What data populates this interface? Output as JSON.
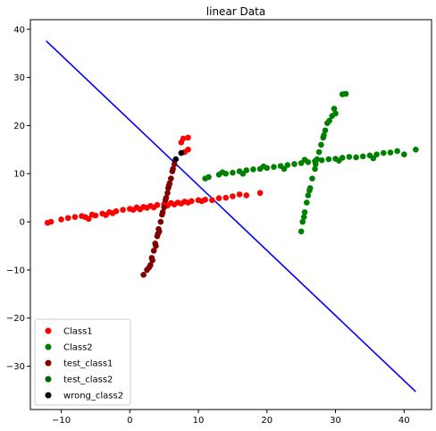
{
  "chart_data": {
    "type": "scatter",
    "title": "linear Data",
    "xlabel": "",
    "ylabel": "",
    "xlim": [
      -14.5,
      44
    ],
    "ylim": [
      -39,
      42
    ],
    "xticks": [
      -10,
      0,
      10,
      20,
      30,
      40
    ],
    "yticks": [
      -30,
      -20,
      -10,
      0,
      10,
      20,
      30,
      40
    ],
    "grid": false,
    "legend_position": "lower-left",
    "line": {
      "color": "#0000ff",
      "x": [
        -12.2,
        41.7
      ],
      "y": [
        37.6,
        -35.3
      ]
    },
    "series": [
      {
        "name": "Class1",
        "color": "#ff0000",
        "points": [
          [
            -12.0,
            -0.2
          ],
          [
            -11.5,
            0.0
          ],
          [
            -10.0,
            0.5
          ],
          [
            -9.0,
            0.8
          ],
          [
            -8.0,
            1.0
          ],
          [
            -7.0,
            1.2
          ],
          [
            -6.5,
            1.0
          ],
          [
            -5.5,
            1.5
          ],
          [
            -5.0,
            1.3
          ],
          [
            -4.0,
            1.7
          ],
          [
            -3.0,
            2.0
          ],
          [
            -2.5,
            1.8
          ],
          [
            -2.0,
            2.2
          ],
          [
            -1.0,
            2.5
          ],
          [
            0.0,
            2.7
          ],
          [
            0.5,
            2.5
          ],
          [
            1.0,
            3.0
          ],
          [
            2.0,
            3.1
          ],
          [
            2.5,
            2.9
          ],
          [
            3.0,
            3.3
          ],
          [
            4.0,
            3.5
          ],
          [
            5.0,
            3.7
          ],
          [
            5.5,
            3.4
          ],
          [
            6.0,
            3.9
          ],
          [
            7.0,
            4.0
          ],
          [
            7.5,
            3.8
          ],
          [
            8.0,
            4.2
          ],
          [
            8.5,
            4.0
          ],
          [
            9.0,
            4.3
          ],
          [
            10.0,
            4.5
          ],
          [
            10.5,
            4.3
          ],
          [
            11.0,
            4.6
          ],
          [
            12.0,
            4.5
          ],
          [
            13.0,
            4.9
          ],
          [
            14.0,
            5.0
          ],
          [
            15.0,
            5.3
          ],
          [
            16.0,
            5.7
          ],
          [
            17.0,
            5.5
          ],
          [
            19.0,
            6.0
          ],
          [
            -6.0,
            0.6
          ],
          [
            -3.5,
            1.4
          ],
          [
            1.5,
            2.6
          ],
          [
            3.5,
            3.0
          ],
          [
            6.5,
            3.6
          ],
          [
            8.0,
            14.5
          ],
          [
            8.5,
            15.0
          ],
          [
            7.5,
            16.5
          ],
          [
            8.5,
            17.5
          ],
          [
            7.8,
            17.3
          ]
        ]
      },
      {
        "name": "Class2",
        "color": "#008000",
        "points": [
          [
            11.0,
            9.0
          ],
          [
            11.5,
            9.3
          ],
          [
            13.0,
            9.8
          ],
          [
            14.0,
            10.0
          ],
          [
            15.0,
            10.2
          ],
          [
            16.0,
            10.5
          ],
          [
            17.0,
            10.7
          ],
          [
            18.0,
            10.9
          ],
          [
            19.0,
            11.0
          ],
          [
            20.0,
            11.2
          ],
          [
            21.0,
            11.4
          ],
          [
            22.0,
            11.6
          ],
          [
            23.0,
            11.8
          ],
          [
            24.0,
            12.0
          ],
          [
            25.0,
            12.2
          ],
          [
            26.0,
            12.4
          ],
          [
            27.0,
            12.6
          ],
          [
            28.0,
            12.8
          ],
          [
            29.0,
            13.0
          ],
          [
            30.0,
            13.1
          ],
          [
            31.0,
            13.3
          ],
          [
            32.0,
            13.5
          ],
          [
            33.0,
            13.4
          ],
          [
            34.0,
            13.6
          ],
          [
            35.0,
            13.8
          ],
          [
            36.0,
            14.0
          ],
          [
            37.0,
            14.3
          ],
          [
            38.0,
            14.4
          ],
          [
            39.0,
            14.7
          ],
          [
            40.0,
            14.0
          ],
          [
            41.7,
            15.0
          ],
          [
            13.5,
            10.3
          ],
          [
            16.5,
            10.0
          ],
          [
            19.5,
            11.5
          ],
          [
            22.5,
            11.0
          ],
          [
            25.5,
            12.9
          ],
          [
            30.5,
            12.7
          ],
          [
            35.5,
            13.2
          ],
          [
            25.0,
            -2.0
          ],
          [
            25.2,
            0.0
          ],
          [
            25.5,
            2.0
          ],
          [
            25.8,
            4.0
          ],
          [
            26.0,
            5.5
          ],
          [
            26.3,
            7.0
          ],
          [
            26.6,
            9.0
          ],
          [
            27.0,
            11.0
          ],
          [
            27.3,
            13.0
          ],
          [
            27.6,
            14.5
          ],
          [
            27.9,
            16.0
          ],
          [
            28.2,
            17.5
          ],
          [
            28.5,
            19.0
          ],
          [
            28.8,
            20.5
          ],
          [
            29.1,
            21.0
          ],
          [
            29.5,
            22.0
          ],
          [
            30.0,
            22.5
          ],
          [
            31.0,
            26.5
          ],
          [
            31.5,
            26.6
          ],
          [
            29.8,
            23.5
          ],
          [
            28.3,
            18.0
          ],
          [
            27.1,
            12.0
          ],
          [
            26.2,
            6.5
          ],
          [
            25.4,
            1.0
          ]
        ]
      },
      {
        "name": "test_class1",
        "color": "#800000",
        "points": [
          [
            2.0,
            -11.0
          ],
          [
            2.5,
            -10.0
          ],
          [
            3.0,
            -9.0
          ],
          [
            3.2,
            -7.5
          ],
          [
            3.5,
            -6.0
          ],
          [
            3.7,
            -4.5
          ],
          [
            4.0,
            -3.0
          ],
          [
            4.2,
            -1.5
          ],
          [
            4.5,
            0.0
          ],
          [
            4.7,
            1.5
          ],
          [
            5.0,
            3.0
          ],
          [
            5.2,
            4.5
          ],
          [
            5.5,
            6.0
          ],
          [
            5.7,
            7.5
          ],
          [
            6.0,
            9.0
          ],
          [
            6.2,
            10.5
          ],
          [
            6.5,
            12.0
          ],
          [
            3.3,
            -8.0
          ],
          [
            3.8,
            -5.0
          ],
          [
            4.3,
            -2.0
          ],
          [
            4.8,
            2.0
          ],
          [
            5.3,
            5.0
          ],
          [
            5.8,
            8.0
          ],
          [
            6.3,
            11.0
          ],
          [
            2.8,
            -9.5
          ],
          [
            4.1,
            -2.5
          ],
          [
            5.6,
            7.0
          ]
        ]
      },
      {
        "name": "test_class2",
        "color": "#006400",
        "points": []
      },
      {
        "name": "wrong_class2",
        "color": "#000000",
        "points": [
          [
            6.7,
            13.0
          ],
          [
            7.5,
            14.3
          ]
        ]
      }
    ]
  }
}
